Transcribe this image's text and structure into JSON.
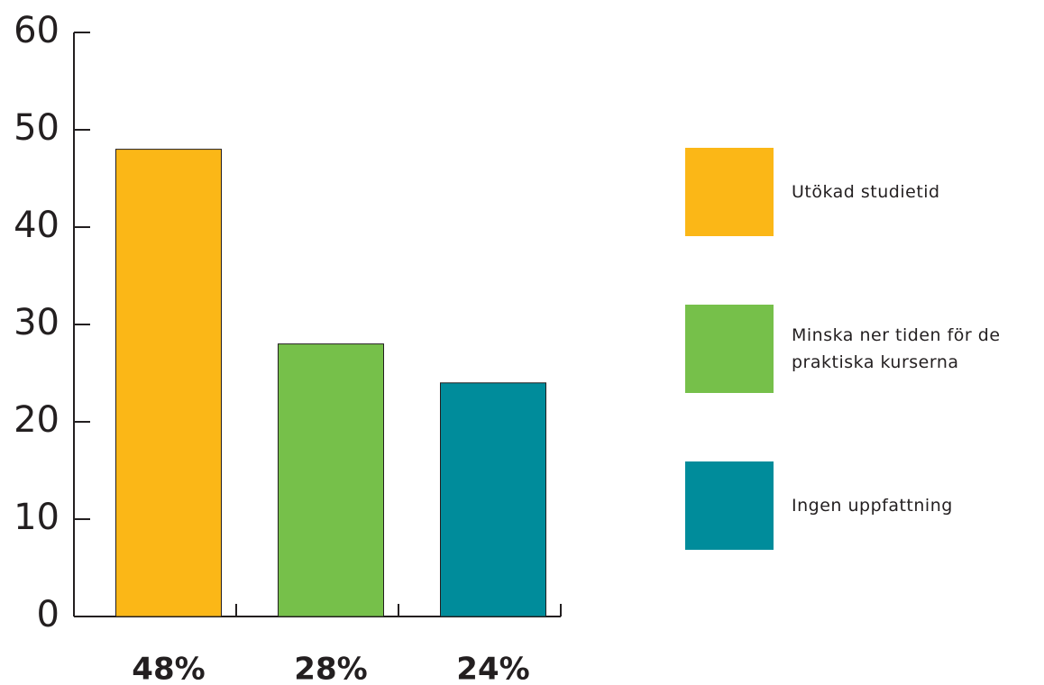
{
  "chart_data": {
    "type": "bar",
    "categories": [
      "Utökad studietid",
      "Minska ner tiden för de praktiska kurserna",
      "Ingen uppfattning"
    ],
    "values": [
      48,
      28,
      24
    ],
    "value_labels": [
      "48%",
      "28%",
      "24%"
    ],
    "colors": [
      "#fbb717",
      "#76c04a",
      "#008c9b"
    ],
    "ylim": [
      0,
      60
    ],
    "yticks": [
      0,
      10,
      20,
      30,
      40,
      50,
      60
    ],
    "legend": "right"
  }
}
